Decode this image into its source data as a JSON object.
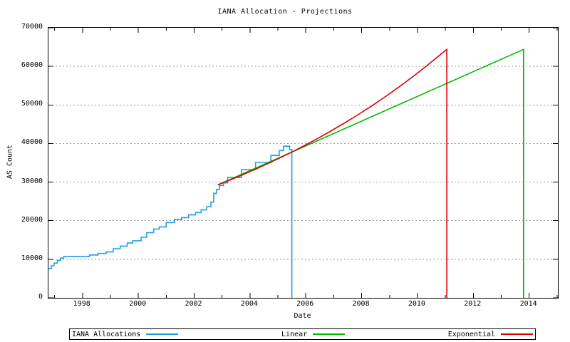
{
  "chart": {
    "title": "IANA Allocation - Projections"
  },
  "chart_data": {
    "type": "line",
    "title": "IANA Allocation - Projections",
    "xlabel": "Date",
    "ylabel": "AS Count",
    "xlim": [
      1996.78,
      2015.03
    ],
    "ylim": [
      0,
      70000
    ],
    "yticks": [
      0,
      10000,
      20000,
      30000,
      40000,
      50000,
      60000,
      70000
    ],
    "xticks_major": [
      1998,
      2000,
      2002,
      2004,
      2006,
      2008,
      2010,
      2012,
      2014
    ],
    "xticks_minor": [
      1997,
      1999,
      2001,
      2003,
      2005,
      2007,
      2009,
      2011,
      2013,
      2015
    ],
    "grid": "horizontal-dotted",
    "grid_color": "#9a9a9a",
    "legend_position": "bottom",
    "series": [
      {
        "name": "IANA Allocations",
        "color": "#1f9fe0",
        "style": "step",
        "points": [
          [
            1996.78,
            7600
          ],
          [
            1996.88,
            8300
          ],
          [
            1996.98,
            9000
          ],
          [
            1997.1,
            9700
          ],
          [
            1997.22,
            10300
          ],
          [
            1997.33,
            10700
          ],
          [
            1998.25,
            11100
          ],
          [
            1998.55,
            11500
          ],
          [
            1998.85,
            11900
          ],
          [
            1999.1,
            12700
          ],
          [
            1999.35,
            13400
          ],
          [
            1999.6,
            14200
          ],
          [
            1999.8,
            14800
          ],
          [
            2000.1,
            15700
          ],
          [
            2000.3,
            16900
          ],
          [
            2000.55,
            17800
          ],
          [
            2000.75,
            18400
          ],
          [
            2001.0,
            19500
          ],
          [
            2001.3,
            20300
          ],
          [
            2001.55,
            20800
          ],
          [
            2001.8,
            21500
          ],
          [
            2002.05,
            22100
          ],
          [
            2002.25,
            22800
          ],
          [
            2002.45,
            23600
          ],
          [
            2002.6,
            24800
          ],
          [
            2002.7,
            27100
          ],
          [
            2002.8,
            28100
          ],
          [
            2002.9,
            29100
          ],
          [
            2003.05,
            29800
          ],
          [
            2003.2,
            31200
          ],
          [
            2003.7,
            33200
          ],
          [
            2004.2,
            35100
          ],
          [
            2004.75,
            36900
          ],
          [
            2005.05,
            38200
          ],
          [
            2005.2,
            39300
          ],
          [
            2005.42,
            38400
          ],
          [
            2005.5,
            0
          ]
        ]
      },
      {
        "name": "Linear",
        "color": "#00bb00",
        "style": "line",
        "points": [
          [
            2002.85,
            29300
          ],
          [
            2013.8,
            64400
          ],
          [
            2013.8,
            0
          ]
        ]
      },
      {
        "name": "Exponential",
        "color": "#dd0000",
        "style": "line",
        "points": [
          [
            2002.85,
            29300
          ],
          [
            2003.35,
            30740
          ],
          [
            2003.85,
            32250
          ],
          [
            2004.35,
            33840
          ],
          [
            2004.85,
            35510
          ],
          [
            2005.35,
            37260
          ],
          [
            2005.85,
            39090
          ],
          [
            2006.35,
            41020
          ],
          [
            2006.85,
            43040
          ],
          [
            2007.35,
            45160
          ],
          [
            2007.85,
            47380
          ],
          [
            2008.35,
            49710
          ],
          [
            2008.85,
            52160
          ],
          [
            2009.35,
            54730
          ],
          [
            2009.85,
            57420
          ],
          [
            2010.35,
            60250
          ],
          [
            2010.85,
            63220
          ],
          [
            2011.05,
            64400
          ],
          [
            2011.05,
            0
          ]
        ]
      }
    ]
  }
}
